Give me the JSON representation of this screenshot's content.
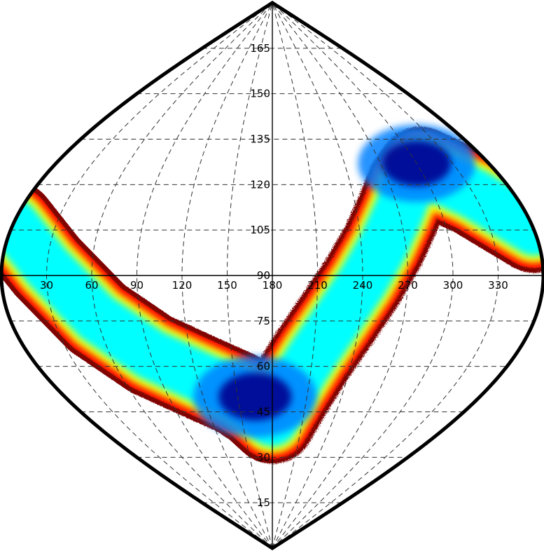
{
  "chart_data": {
    "type": "heatmap",
    "projection": "sinusoidal",
    "title": "",
    "xlabel": "",
    "ylabel": "",
    "x_range": [
      0,
      360
    ],
    "y_range": [
      0,
      180
    ],
    "x_ticks": [
      "30",
      "60",
      "90",
      "120",
      "150",
      "180",
      "210",
      "240",
      "270",
      "300",
      "330"
    ],
    "y_ticks": [
      "15",
      "30",
      "45",
      "60",
      "75",
      "90",
      "105",
      "120",
      "135",
      "150",
      "165"
    ],
    "grid": true,
    "grid_style": "dashed",
    "colormap": [
      "#7f0000",
      "#ff0000",
      "#ffff00",
      "#00ffff",
      "#0080ff",
      "#00008f"
    ],
    "outline_color": "#000000",
    "density_band": {
      "path": [
        [
          0,
          107
        ],
        [
          30,
          93
        ],
        [
          60,
          76
        ],
        [
          90,
          64
        ],
        [
          120,
          57
        ],
        [
          150,
          51
        ],
        [
          165,
          47
        ],
        [
          180,
          42
        ],
        [
          195,
          52
        ],
        [
          210,
          64
        ],
        [
          225,
          76
        ],
        [
          240,
          88
        ],
        [
          255,
          100
        ],
        [
          270,
          111
        ],
        [
          285,
          120
        ],
        [
          300,
          125
        ],
        [
          330,
          117
        ],
        [
          360,
          105
        ]
      ],
      "peaks": [
        {
          "x": 165,
          "y": 50,
          "level": 1.0
        },
        {
          "x": 300,
          "y": 127,
          "level": 0.95
        }
      ]
    }
  }
}
